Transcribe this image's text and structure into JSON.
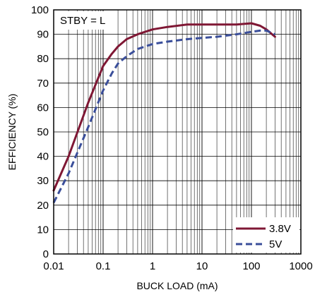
{
  "chart_data": {
    "type": "line",
    "xlabel": "BUCK LOAD (mA)",
    "ylabel": "EFFICIENCY (%)",
    "x_scale": "log",
    "xlim": [
      0.01,
      1000
    ],
    "ylim": [
      0,
      100
    ],
    "x_ticks": [
      0.01,
      0.1,
      1,
      10,
      100,
      1000
    ],
    "x_tick_labels": [
      "0.01",
      "0.1",
      "1",
      "10",
      "100",
      "1000"
    ],
    "y_ticks": [
      0,
      10,
      20,
      30,
      40,
      50,
      60,
      70,
      80,
      90,
      100
    ],
    "y_tick_labels": [
      "0",
      "10",
      "20",
      "30",
      "40",
      "50",
      "60",
      "70",
      "80",
      "90",
      "100"
    ],
    "grid": true,
    "legend_position": "bottom-right",
    "annotation": "STBY = L",
    "series": [
      {
        "name": "3.8V",
        "color": "#7f1734",
        "style": "solid",
        "x": [
          0.01,
          0.02,
          0.05,
          0.1,
          0.15,
          0.2,
          0.3,
          0.5,
          1,
          2,
          5,
          10,
          20,
          50,
          100,
          150,
          200,
          300
        ],
        "y": [
          26,
          40,
          62,
          77,
          82,
          85,
          88,
          90,
          92,
          93,
          94,
          94,
          94,
          94,
          94.5,
          93.5,
          92,
          89
        ]
      },
      {
        "name": "5V",
        "color": "#3a4e9a",
        "style": "dashed",
        "x": [
          0.01,
          0.02,
          0.05,
          0.1,
          0.15,
          0.2,
          0.3,
          0.5,
          1,
          2,
          5,
          10,
          20,
          50,
          100,
          150,
          200,
          300
        ],
        "y": [
          21,
          33,
          52,
          67,
          74,
          78,
          81,
          84,
          86,
          87,
          88,
          88.5,
          89,
          90,
          91,
          91.5,
          91.5,
          90
        ]
      }
    ]
  }
}
